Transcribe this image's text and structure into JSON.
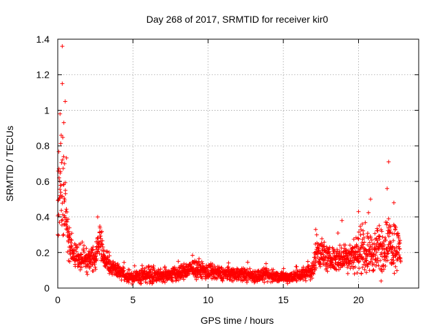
{
  "chart_data": {
    "type": "scatter",
    "title": "Day 268 of 2017, SRMTID for receiver kir0",
    "xlabel": "GPS time / hours",
    "ylabel": "SRMTID / TECUs",
    "xlim": [
      0,
      24
    ],
    "ylim": [
      0,
      1.4
    ],
    "xticks": [
      0,
      5,
      10,
      15,
      20
    ],
    "yticks": [
      0,
      0.2,
      0.4,
      0.6,
      0.8,
      1,
      1.2,
      1.4
    ],
    "xtick_labels": [
      "0",
      "5",
      "10",
      "15",
      "20"
    ],
    "ytick_labels": [
      "0",
      "0.2",
      "0.4",
      "0.6",
      "0.8",
      "1",
      "1.2",
      "1.4"
    ],
    "grid": true,
    "marker": "+",
    "color": "#ff0000",
    "series": [
      {
        "name": "SRMTID",
        "trend_x": [
          0.0,
          0.1,
          0.3,
          0.5,
          0.8,
          1.0,
          1.5,
          2.0,
          2.5,
          2.8,
          3.0,
          3.5,
          4.0,
          4.5,
          5.0,
          6.0,
          7.0,
          8.0,
          9.0,
          10.0,
          11.0,
          12.0,
          13.0,
          14.0,
          15.0,
          16.0,
          17.0,
          17.2,
          17.5,
          18.0,
          19.0,
          20.0,
          21.0,
          21.5,
          22.0,
          22.5,
          22.8
        ],
        "trend_y": [
          0.55,
          0.6,
          0.55,
          0.45,
          0.25,
          0.2,
          0.17,
          0.16,
          0.17,
          0.3,
          0.18,
          0.12,
          0.1,
          0.07,
          0.06,
          0.08,
          0.07,
          0.08,
          0.11,
          0.09,
          0.08,
          0.08,
          0.07,
          0.07,
          0.06,
          0.07,
          0.1,
          0.22,
          0.2,
          0.16,
          0.17,
          0.2,
          0.2,
          0.22,
          0.26,
          0.24,
          0.2
        ],
        "scatter_spread": [
          0.35,
          0.3,
          0.3,
          0.25,
          0.1,
          0.08,
          0.08,
          0.08,
          0.07,
          0.12,
          0.07,
          0.05,
          0.05,
          0.04,
          0.04,
          0.05,
          0.04,
          0.05,
          0.05,
          0.05,
          0.04,
          0.04,
          0.04,
          0.04,
          0.03,
          0.04,
          0.05,
          0.1,
          0.1,
          0.07,
          0.08,
          0.12,
          0.12,
          0.15,
          0.15,
          0.15,
          0.1
        ],
        "notable_points": [
          {
            "x": 0.3,
            "y": 1.36
          },
          {
            "x": 0.3,
            "y": 1.15
          },
          {
            "x": 0.5,
            "y": 1.05
          },
          {
            "x": 0.15,
            "y": 0.98
          },
          {
            "x": 0.4,
            "y": 0.93
          },
          {
            "x": 0.45,
            "y": 0.7
          },
          {
            "x": 2.65,
            "y": 0.4
          },
          {
            "x": 17.15,
            "y": 0.33
          },
          {
            "x": 18.9,
            "y": 0.38
          },
          {
            "x": 20.0,
            "y": 0.43
          },
          {
            "x": 20.8,
            "y": 0.5
          },
          {
            "x": 21.9,
            "y": 0.56
          },
          {
            "x": 22.0,
            "y": 0.71
          },
          {
            "x": 22.35,
            "y": 0.48
          },
          {
            "x": 21.5,
            "y": 0.04
          }
        ],
        "approx_point_count": 2200
      }
    ]
  }
}
